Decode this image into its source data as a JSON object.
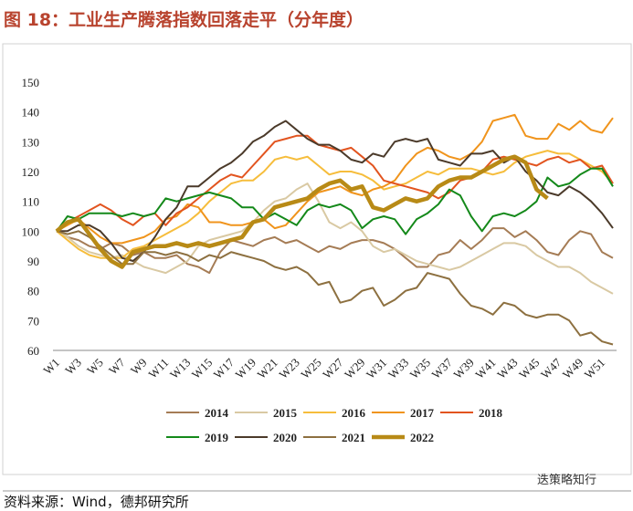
{
  "chart_data": {
    "type": "line",
    "title": "图 18：工业生产腾落指数回落走平（分年度）",
    "source": "资料来源：Wind，德邦研究所",
    "watermark": "迭策略知行",
    "categories": [
      "W1",
      null,
      "W3",
      null,
      "W5",
      null,
      "W7",
      null,
      "W9",
      null,
      "W11",
      null,
      "W13",
      null,
      "W15",
      null,
      "W17",
      null,
      "W19",
      null,
      "W21",
      null,
      "W23",
      null,
      "W25",
      null,
      "W27",
      null,
      "W29",
      null,
      "W31",
      null,
      "W33",
      null,
      "W35",
      null,
      "W37",
      null,
      "W39",
      null,
      "W41",
      null,
      "W43",
      null,
      "W45",
      null,
      "W47",
      null,
      "W49",
      null,
      "W51",
      null
    ],
    "ylim": [
      60,
      150
    ],
    "yticks": [
      60,
      70,
      80,
      90,
      100,
      110,
      120,
      130,
      140,
      150
    ],
    "grid": false,
    "series": [
      {
        "name": "2014",
        "color": "#a57c55",
        "linewidth": 2,
        "values": [
          100,
          98,
          97,
          95,
          94,
          96,
          95,
          92,
          93,
          91,
          91,
          92,
          89,
          88,
          86,
          93,
          97,
          96,
          95,
          97,
          98,
          96,
          97,
          95,
          93,
          95,
          94,
          96,
          97,
          97,
          96,
          94,
          91,
          88,
          88,
          92,
          93,
          97,
          94,
          97,
          101,
          101,
          98,
          100,
          97,
          93,
          92,
          97,
          100,
          99,
          93,
          91
        ]
      },
      {
        "name": "2015",
        "color": "#d9c9a3",
        "linewidth": 2,
        "values": [
          100,
          98,
          95,
          93,
          92,
          91,
          92,
          90,
          88,
          87,
          86,
          88,
          90,
          95,
          97,
          98,
          99,
          100,
          103,
          107,
          110,
          111,
          114,
          116,
          110,
          103,
          101,
          103,
          100,
          95,
          93,
          94,
          92,
          90,
          89,
          88,
          87,
          88,
          90,
          92,
          94,
          96,
          96,
          95,
          92,
          90,
          88,
          88,
          86,
          83,
          81,
          79
        ]
      },
      {
        "name": "2016",
        "color": "#f6bd3c",
        "linewidth": 2,
        "values": [
          100,
          97,
          94,
          92,
          91,
          91,
          91,
          94,
          95,
          97,
          99,
          101,
          103,
          106,
          110,
          113,
          116,
          117,
          117,
          120,
          124,
          125,
          124,
          125,
          122,
          119,
          120,
          120,
          119,
          117,
          114,
          115,
          116,
          118,
          120,
          119,
          121,
          121,
          121,
          120,
          119,
          120,
          123,
          125,
          126,
          127,
          126,
          126,
          124,
          122,
          120,
          116
        ]
      },
      {
        "name": "2017",
        "color": "#f0941c",
        "linewidth": 2,
        "values": [
          100,
          102,
          104,
          101,
          98,
          96,
          96,
          97,
          98,
          100,
          104,
          105,
          109,
          108,
          103,
          103,
          102,
          102,
          103,
          104,
          101,
          102,
          106,
          110,
          113,
          114,
          115,
          113,
          112,
          114,
          115,
          117,
          122,
          126,
          128,
          127,
          125,
          124,
          126,
          130,
          137,
          138,
          139,
          132,
          131,
          131,
          136,
          134,
          137,
          134,
          133,
          138
        ]
      },
      {
        "name": "2018",
        "color": "#e2541f",
        "linewidth": 2,
        "values": [
          100,
          103,
          105,
          107,
          109,
          107,
          104,
          102,
          105,
          106,
          102,
          106,
          108,
          111,
          114,
          117,
          119,
          118,
          122,
          126,
          130,
          131,
          132,
          132,
          129,
          128,
          127,
          128,
          125,
          122,
          117,
          116,
          115,
          114,
          113,
          111,
          113,
          117,
          118,
          120,
          124,
          125,
          124,
          123,
          122,
          124,
          125,
          123,
          124,
          121,
          122,
          116
        ]
      },
      {
        "name": "2019",
        "color": "#14891a",
        "linewidth": 2,
        "values": [
          100,
          105,
          104,
          106,
          106,
          106,
          105,
          106,
          105,
          106,
          111,
          110,
          111,
          112,
          113,
          112,
          111,
          108,
          108,
          104,
          106,
          104,
          102,
          107,
          109,
          108,
          109,
          107,
          101,
          104,
          105,
          104,
          99,
          104,
          106,
          109,
          114,
          112,
          105,
          100,
          105,
          106,
          105,
          107,
          110,
          118,
          115,
          116,
          119,
          121,
          121,
          115
        ]
      },
      {
        "name": "2020",
        "color": "#4b3a2a",
        "linewidth": 2,
        "values": [
          100,
          100,
          102,
          102,
          100,
          96,
          91,
          90,
          93,
          98,
          104,
          108,
          115,
          115,
          118,
          121,
          123,
          126,
          130,
          132,
          135,
          137,
          134,
          131,
          129,
          129,
          127,
          124,
          123,
          126,
          125,
          130,
          131,
          130,
          131,
          124,
          123,
          122,
          126,
          126,
          127,
          123,
          125,
          120,
          117,
          113,
          112,
          115,
          113,
          110,
          106,
          101
        ]
      },
      {
        "name": "2021",
        "color": "#8d7040",
        "linewidth": 2,
        "values": [
          100,
          99,
          100,
          98,
          95,
          92,
          89,
          89,
          93,
          93,
          92,
          93,
          92,
          90,
          92,
          91,
          93,
          92,
          91,
          90,
          88,
          87,
          88,
          86,
          82,
          83,
          76,
          77,
          80,
          81,
          75,
          77,
          80,
          81,
          86,
          85,
          84,
          79,
          75,
          74,
          72,
          76,
          75,
          72,
          71,
          72,
          72,
          70,
          65,
          66,
          63,
          62
        ]
      },
      {
        "name": "2022",
        "color": "#b88a16",
        "linewidth": 4.5,
        "values": [
          100,
          103,
          104,
          99,
          94,
          90,
          88,
          93,
          94,
          95,
          95,
          96,
          95,
          96,
          95,
          96,
          97,
          98,
          103,
          104,
          108,
          109,
          110,
          111,
          114,
          116,
          117,
          114,
          115,
          108,
          107,
          109,
          111,
          110,
          111,
          115,
          117,
          118,
          118,
          120,
          122,
          124,
          125,
          123,
          114,
          111,
          null,
          null,
          null,
          null,
          null,
          null
        ]
      }
    ]
  }
}
